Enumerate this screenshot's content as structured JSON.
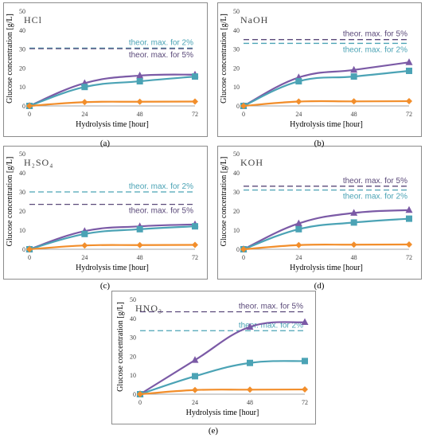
{
  "colors": {
    "purple": "#7b5aa6",
    "teal": "#4ba3b5",
    "orange": "#f28e2b",
    "dashedPurple": "#5b4a7a",
    "dashedTeal": "#4ba3b5",
    "axis": "#a6a6a6"
  },
  "chart_data": [
    {
      "type": "line",
      "caption": "(a)",
      "title": "HCl",
      "xlabel": "Hydrolysis time [hour]",
      "ylabel": "Glucose concentration [g/L]",
      "x": [
        0,
        24,
        48,
        72
      ],
      "xlim": [
        0,
        72
      ],
      "ylim": [
        0,
        50
      ],
      "xticks": [
        "0",
        "24",
        "48",
        "72"
      ],
      "yticks": [
        "0",
        "10",
        "20",
        "30",
        "40",
        "50"
      ],
      "series": [
        {
          "values": [
            0,
            12,
            16,
            16.5
          ],
          "color": "purple",
          "marker": "triangle"
        },
        {
          "values": [
            0,
            10,
            13,
            15.5
          ],
          "color": "teal",
          "marker": "square"
        },
        {
          "values": [
            0,
            2,
            2.2,
            2.3
          ],
          "color": "orange",
          "marker": "diamond"
        }
      ],
      "hlines": [
        {
          "y": 30.5,
          "label": "theor. max. for 2%",
          "color": "dashedTeal",
          "label_pos": "above"
        },
        {
          "y": 30.2,
          "label": "theor. max. for 5%",
          "color": "dashedPurple",
          "label_pos": "below"
        }
      ]
    },
    {
      "type": "line",
      "caption": "(b)",
      "title": "NaOH",
      "xlabel": "Hydrolysis time [hour]",
      "ylabel": "Glucose concentration [g/L]",
      "x": [
        0,
        24,
        48,
        72
      ],
      "xlim": [
        0,
        72
      ],
      "ylim": [
        0,
        50
      ],
      "xticks": [
        "0",
        "24",
        "48",
        "72"
      ],
      "yticks": [
        "0",
        "10",
        "20",
        "30",
        "40",
        "50"
      ],
      "series": [
        {
          "values": [
            0,
            15,
            19,
            23
          ],
          "color": "purple",
          "marker": "triangle"
        },
        {
          "values": [
            0,
            13,
            15.5,
            18.5
          ],
          "color": "teal",
          "marker": "square"
        },
        {
          "values": [
            0,
            2.3,
            2.4,
            2.5
          ],
          "color": "orange",
          "marker": "diamond"
        }
      ],
      "hlines": [
        {
          "y": 35,
          "label": "theor. max. for 5%",
          "color": "dashedPurple",
          "label_pos": "above"
        },
        {
          "y": 33,
          "label": "theor. max. for 2%",
          "color": "dashedTeal",
          "label_pos": "below"
        }
      ]
    },
    {
      "type": "line",
      "caption": "(c)",
      "title": "H₂SO₄",
      "xlabel": "Hydrolysis time [hour]",
      "ylabel": "Glucose concentration [g/L]",
      "x": [
        0,
        24,
        48,
        72
      ],
      "xlim": [
        0,
        72
      ],
      "ylim": [
        0,
        50
      ],
      "xticks": [
        "0",
        "24",
        "48",
        "72"
      ],
      "yticks": [
        "0",
        "10",
        "20",
        "30",
        "40",
        "50"
      ],
      "series": [
        {
          "values": [
            0,
            9.5,
            12,
            13
          ],
          "color": "purple",
          "marker": "triangle"
        },
        {
          "values": [
            0,
            8,
            10.5,
            12
          ],
          "color": "teal",
          "marker": "square"
        },
        {
          "values": [
            0,
            2,
            2.2,
            2.3
          ],
          "color": "orange",
          "marker": "diamond"
        }
      ],
      "hlines": [
        {
          "y": 30,
          "label": "theor. max. for 2%",
          "color": "dashedTeal",
          "label_pos": "above"
        },
        {
          "y": 23.5,
          "label": "theor. max. for 5%",
          "color": "dashedPurple",
          "label_pos": "below"
        }
      ]
    },
    {
      "type": "line",
      "caption": "(d)",
      "title": "KOH",
      "xlabel": "Hydrolysis time [hour]",
      "ylabel": "Glucose concentration [g/L]",
      "x": [
        0,
        24,
        48,
        72
      ],
      "xlim": [
        0,
        72
      ],
      "ylim": [
        0,
        50
      ],
      "xticks": [
        "0",
        "24",
        "48",
        "72"
      ],
      "yticks": [
        "0",
        "10",
        "20",
        "30",
        "40",
        "50"
      ],
      "series": [
        {
          "values": [
            0,
            13.5,
            19,
            20.5
          ],
          "color": "purple",
          "marker": "triangle"
        },
        {
          "values": [
            0,
            10.5,
            14,
            16
          ],
          "color": "teal",
          "marker": "square"
        },
        {
          "values": [
            0,
            2.2,
            2.4,
            2.5
          ],
          "color": "orange",
          "marker": "diamond"
        }
      ],
      "hlines": [
        {
          "y": 33,
          "label": "theor. max. for 5%",
          "color": "dashedPurple",
          "label_pos": "above"
        },
        {
          "y": 31,
          "label": "theor. max. for 2%",
          "color": "dashedTeal",
          "label_pos": "below"
        }
      ]
    },
    {
      "type": "line",
      "caption": "(e)",
      "title": "HNO₃",
      "xlabel": "Hydrolysis time [hour]",
      "ylabel": "Glucose concentration [g/L]",
      "x": [
        0,
        24,
        48,
        72
      ],
      "xlim": [
        0,
        72
      ],
      "ylim": [
        0,
        50
      ],
      "xticks": [
        "0",
        "24",
        "48",
        "72"
      ],
      "yticks": [
        "0",
        "10",
        "20",
        "30",
        "40",
        "50"
      ],
      "series": [
        {
          "values": [
            0,
            18,
            35.5,
            38
          ],
          "color": "purple",
          "marker": "triangle"
        },
        {
          "values": [
            0,
            9.5,
            16.5,
            17.5
          ],
          "color": "teal",
          "marker": "square"
        },
        {
          "values": [
            0,
            2.2,
            2.4,
            2.5
          ],
          "color": "orange",
          "marker": "diamond"
        }
      ],
      "hlines": [
        {
          "y": 43.5,
          "label": "theor. max. for 5%",
          "color": "dashedPurple",
          "label_pos": "above"
        },
        {
          "y": 33.5,
          "label": "theor. max. for 2%",
          "color": "dashedTeal",
          "label_pos": "above"
        }
      ]
    }
  ]
}
